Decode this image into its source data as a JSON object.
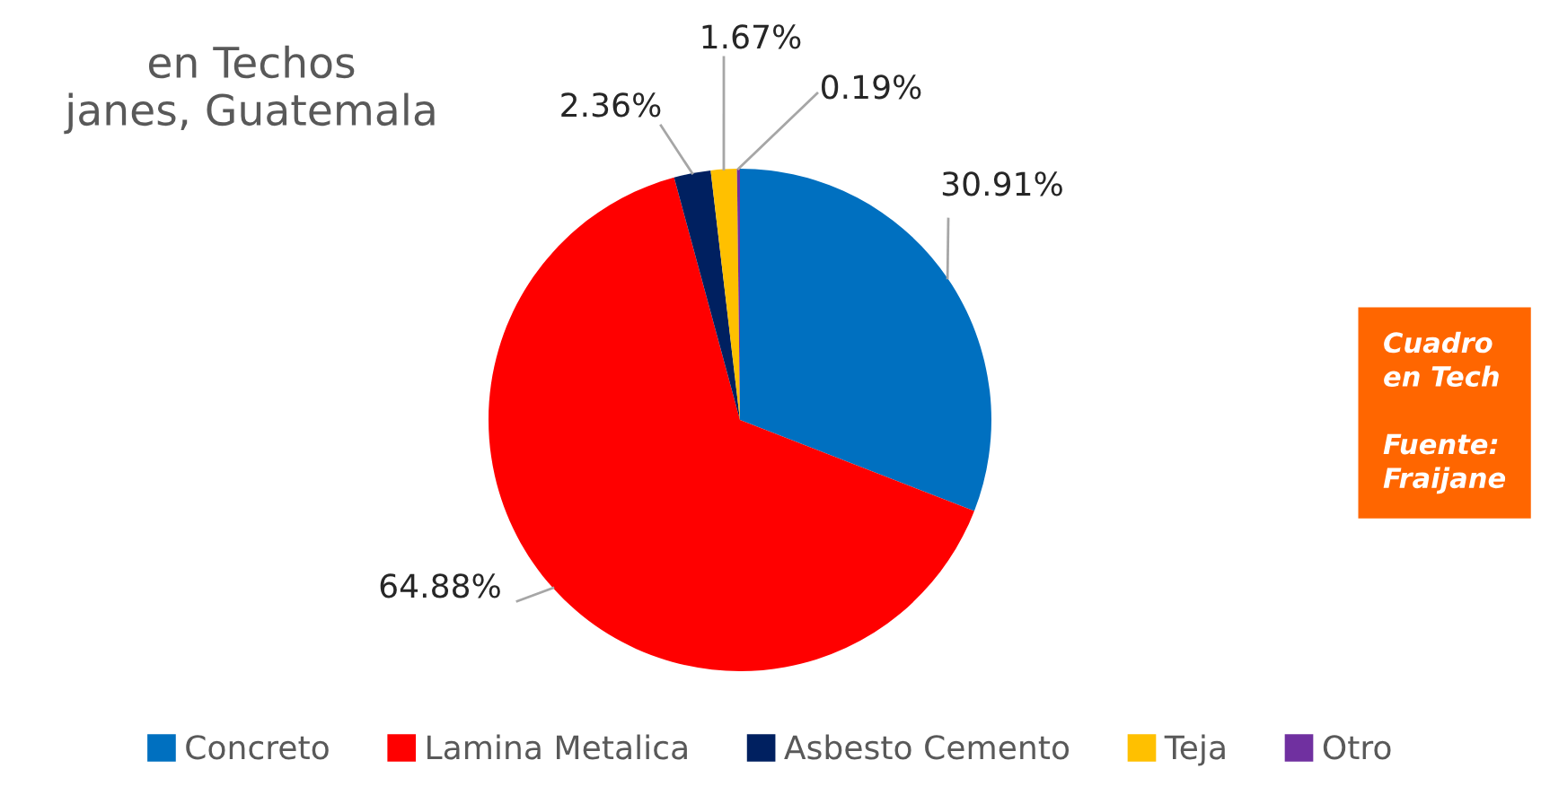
{
  "chart_data": {
    "type": "pie",
    "title": "en Techos\njanes, Guatemala",
    "categories": [
      "Concreto",
      "Lamina Metalica",
      "Asbesto Cemento",
      "Teja",
      "Otro"
    ],
    "values": [
      30.91,
      64.88,
      2.36,
      1.67,
      0.19
    ],
    "value_labels": [
      "30.91%",
      "64.88%",
      "2.36%",
      "1.67%",
      "0.19%"
    ],
    "colors": [
      "#0070c0",
      "#ff0000",
      "#002060",
      "#ffc000",
      "#7030a0"
    ],
    "legend": "bottom",
    "annotations": [
      "Cuadro\nen Tech\n\nFuente:\nFraijane"
    ]
  }
}
